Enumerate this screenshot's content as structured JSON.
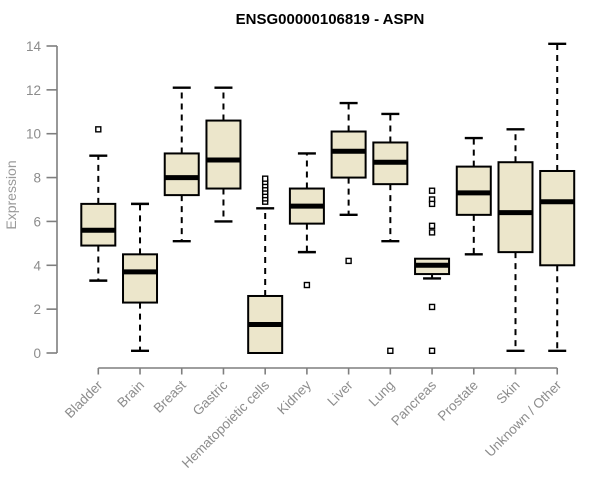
{
  "chart_data": {
    "type": "boxplot",
    "title": "ENSG00000106819 - ASPN",
    "xlabel": "",
    "ylabel": "Expression",
    "ylim": [
      0,
      14
    ],
    "yticks": [
      0,
      2,
      4,
      6,
      8,
      10,
      12,
      14
    ],
    "grid": false,
    "legend": "none",
    "categories": [
      "Bladder",
      "Brain",
      "Breast",
      "Gastric",
      "Hematopoietic cells",
      "Kidney",
      "Liver",
      "Lung",
      "Pancreas",
      "Prostate",
      "Skin",
      "Unknown / Other"
    ],
    "series": [
      {
        "category": "Bladder",
        "whisker_low": 3.3,
        "q1": 4.9,
        "median": 5.6,
        "q3": 6.8,
        "whisker_high": 9.0,
        "outliers": [
          10.2
        ]
      },
      {
        "category": "Brain",
        "whisker_low": 0.1,
        "q1": 2.3,
        "median": 3.7,
        "q3": 4.5,
        "whisker_high": 6.8,
        "outliers": []
      },
      {
        "category": "Breast",
        "whisker_low": 5.1,
        "q1": 7.2,
        "median": 8.0,
        "q3": 9.1,
        "whisker_high": 12.1,
        "outliers": []
      },
      {
        "category": "Gastric",
        "whisker_low": 6.0,
        "q1": 7.5,
        "median": 8.8,
        "q3": 10.6,
        "whisker_high": 12.1,
        "outliers": []
      },
      {
        "category": "Hematopoietic cells",
        "whisker_low": 0.0,
        "q1": 0.0,
        "median": 1.3,
        "q3": 2.6,
        "whisker_high": 6.6,
        "outliers": [
          6.9,
          7.05,
          7.2,
          7.35,
          7.5,
          7.65,
          7.8,
          7.95
        ]
      },
      {
        "category": "Kidney",
        "whisker_low": 4.6,
        "q1": 5.9,
        "median": 6.7,
        "q3": 7.5,
        "whisker_high": 9.1,
        "outliers": [
          3.1
        ]
      },
      {
        "category": "Liver",
        "whisker_low": 6.3,
        "q1": 8.0,
        "median": 9.2,
        "q3": 10.1,
        "whisker_high": 11.4,
        "outliers": [
          4.2
        ]
      },
      {
        "category": "Lung",
        "whisker_low": 5.1,
        "q1": 7.7,
        "median": 8.7,
        "q3": 9.6,
        "whisker_high": 10.9,
        "outliers": [
          0.1
        ]
      },
      {
        "category": "Pancreas",
        "whisker_low": 3.4,
        "q1": 3.6,
        "median": 4.0,
        "q3": 4.3,
        "whisker_high": 4.3,
        "outliers": [
          7.4,
          7.0,
          6.8,
          5.8,
          5.5,
          2.1,
          0.1
        ]
      },
      {
        "category": "Prostate",
        "whisker_low": 4.5,
        "q1": 6.3,
        "median": 7.3,
        "q3": 8.5,
        "whisker_high": 9.8,
        "outliers": []
      },
      {
        "category": "Skin",
        "whisker_low": 0.1,
        "q1": 4.6,
        "median": 6.4,
        "q3": 8.7,
        "whisker_high": 10.2,
        "outliers": []
      },
      {
        "category": "Unknown / Other",
        "whisker_low": 0.1,
        "q1": 4.0,
        "median": 6.9,
        "q3": 8.3,
        "whisker_high": 14.1,
        "outliers": []
      }
    ],
    "colors": {
      "box_fill": "#ece6cb",
      "box_border": "#000000",
      "median": "#000000",
      "whisker": "#000000",
      "outlier_fill": "#ffffff",
      "axis": "#7f7f7f",
      "tick_label": "#8c8c8c",
      "axis_label": "#9a9a9a",
      "title": "#000000",
      "background": "#ffffff"
    }
  }
}
